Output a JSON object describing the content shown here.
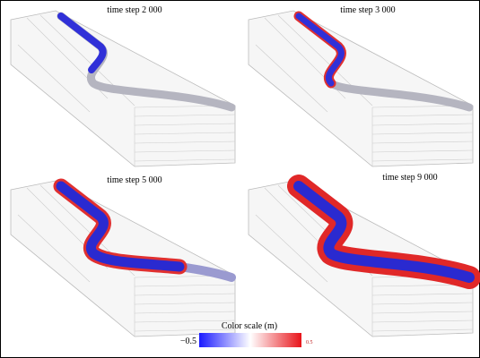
{
  "panels": [
    {
      "label": "time step 2 000"
    },
    {
      "label": "time step 3 000"
    },
    {
      "label": "time step 5 000"
    },
    {
      "label": "time step 9 000"
    }
  ],
  "color_scale": {
    "title": "Color scale (m)",
    "min_label": "−0.5",
    "max_label": "0.5"
  }
}
